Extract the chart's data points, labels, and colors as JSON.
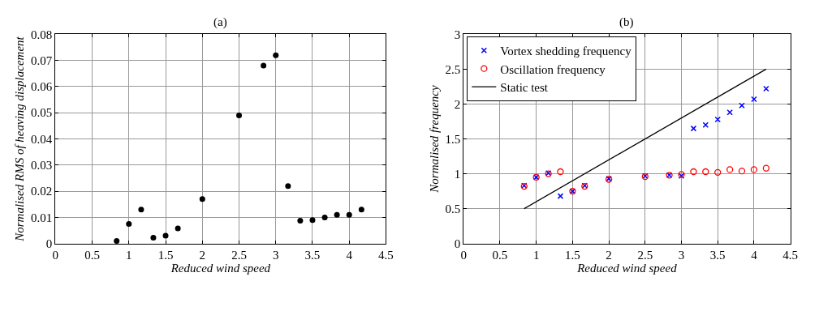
{
  "chart_data": [
    {
      "type": "scatter",
      "title": "(a)",
      "xlabel": "Reduced wind speed",
      "ylabel": "Normalised RMS of heaving displacement",
      "xlim": [
        0,
        4.5
      ],
      "ylim": [
        0,
        0.08
      ],
      "xticks": [
        0,
        0.5,
        1,
        1.5,
        2,
        2.5,
        3,
        3.5,
        4,
        4.5
      ],
      "yticks": [
        0,
        0.01,
        0.02,
        0.03,
        0.04,
        0.05,
        0.06,
        0.07,
        0.08
      ],
      "grid": true,
      "legend": false,
      "x": [
        0.833,
        1,
        1.167,
        1.333,
        1.5,
        1.667,
        2,
        2.5,
        2.833,
        3,
        3.167,
        3.333,
        3.5,
        3.667,
        3.833,
        4,
        4.167
      ],
      "series": [
        {
          "color": "#000000",
          "marker": "circle",
          "values": [
            0.001,
            0.0075,
            0.013,
            0.0022,
            0.003,
            0.0058,
            0.017,
            0.049,
            0.068,
            0.072,
            0.022,
            0.0087,
            0.009,
            0.01,
            0.011,
            0.011,
            0.013
          ]
        }
      ]
    },
    {
      "type": "scatter",
      "title": "(b)",
      "xlabel": "Reduced wind speed",
      "ylabel": "Normalised frequency",
      "xlim": [
        0,
        4.5
      ],
      "ylim": [
        0,
        3
      ],
      "xticks": [
        0,
        0.5,
        1,
        1.5,
        2,
        2.5,
        3,
        3.5,
        4,
        4.5
      ],
      "yticks": [
        0,
        0.5,
        1,
        1.5,
        2,
        2.5,
        3
      ],
      "grid": true,
      "legend": "top left",
      "x": [
        0.833,
        1,
        1.167,
        1.333,
        1.5,
        1.667,
        2,
        2.5,
        2.833,
        3,
        3.167,
        3.333,
        3.5,
        3.667,
        3.833,
        4,
        4.167
      ],
      "series": [
        {
          "name": "Vortex shedding frequency",
          "color": "#0000ff",
          "marker": "cross",
          "values": [
            0.83,
            0.95,
            1.01,
            0.68,
            0.75,
            0.83,
            0.93,
            0.97,
            0.98,
            0.97,
            1.65,
            1.7,
            1.78,
            1.88,
            1.98,
            2.07,
            2.22
          ]
        },
        {
          "name": "Oscillation frequency",
          "color": "#ff0000",
          "marker": "circle",
          "values": [
            0.82,
            0.95,
            1.0,
            1.03,
            0.75,
            0.82,
            0.92,
            0.96,
            0.98,
            0.99,
            1.03,
            1.03,
            1.02,
            1.06,
            1.04,
            1.06,
            1.08
          ]
        },
        {
          "name": "Static test",
          "type": "line",
          "color": "#000000",
          "line_style": "solid",
          "marker": "none",
          "x": [
            0.833,
            4.167
          ],
          "values": [
            0.5,
            2.5
          ]
        }
      ]
    }
  ]
}
